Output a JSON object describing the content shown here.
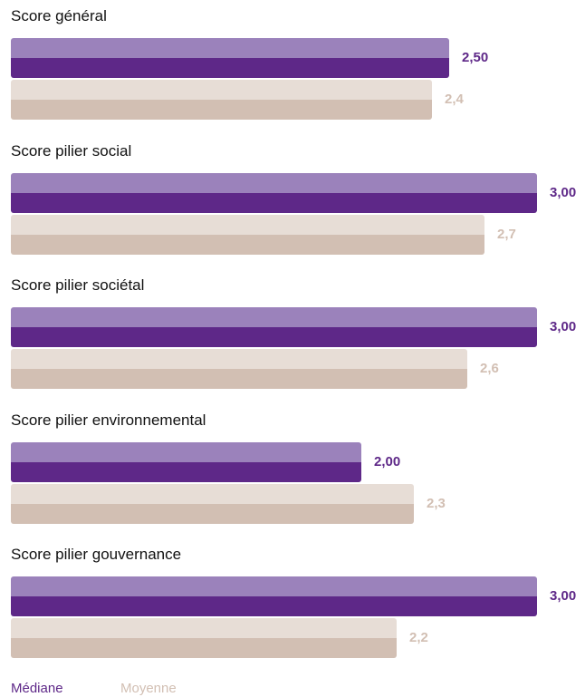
{
  "chart_data": {
    "type": "bar",
    "orientation": "horizontal",
    "categories": [
      "Score général",
      "Score pilier social",
      "Score pilier sociétal",
      "Score pilier environnemental",
      "Score pilier gouvernance"
    ],
    "series": [
      {
        "name": "Médiane",
        "values": [
          2.5,
          3.0,
          3.0,
          2.0,
          3.0
        ],
        "labels": [
          "2,50",
          "3,00",
          "3,00",
          "2,00",
          "3,00"
        ],
        "color_top": "#9b82bb",
        "color_bottom": "#5e2888",
        "label_color": "#5e2888"
      },
      {
        "name": "Moyenne",
        "values": [
          2.4,
          2.7,
          2.6,
          2.3,
          2.2
        ],
        "labels": [
          "2,4",
          "2,7",
          "2,6",
          "2,3",
          "2,2"
        ],
        "color_top": "#e7ddd6",
        "color_bottom": "#d2bfb3",
        "label_color": "#d2bfb3"
      }
    ],
    "xlim": [
      0,
      3
    ],
    "legend_position": "bottom-left",
    "grid": false
  }
}
